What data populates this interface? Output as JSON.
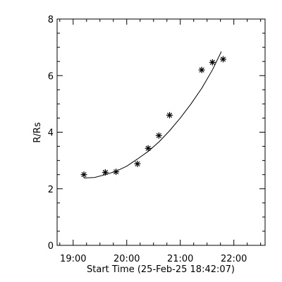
{
  "chart_data": {
    "type": "scatter",
    "title": "",
    "xlabel": "Start Time (25-Feb-25 18:42:07)",
    "ylabel": "R/Rs",
    "xlim": [
      "18:42",
      "22:35"
    ],
    "ylim": [
      0,
      8
    ],
    "grid": false,
    "x_ticks": [
      "19:00",
      "20:00",
      "21:00",
      "22:00"
    ],
    "y_ticks": [
      "0",
      "2",
      "4",
      "6",
      "8"
    ],
    "series": [
      {
        "marker": "asterisk",
        "points": [
          {
            "x": "19:12",
            "y": 2.5
          },
          {
            "x": "19:36",
            "y": 2.58
          },
          {
            "x": "19:48",
            "y": 2.6
          },
          {
            "x": "20:12",
            "y": 2.88
          },
          {
            "x": "20:24",
            "y": 3.43
          },
          {
            "x": "20:36",
            "y": 3.88
          },
          {
            "x": "20:48",
            "y": 4.6
          },
          {
            "x": "21:24",
            "y": 6.2
          },
          {
            "x": "21:36",
            "y": 6.47
          },
          {
            "x": "21:48",
            "y": 6.58
          }
        ]
      },
      {
        "style": "line",
        "x": [
          "19:12",
          "19:24",
          "19:36",
          "19:48",
          "20:00",
          "20:12",
          "20:24",
          "20:36",
          "20:48",
          "21:00",
          "21:12",
          "21:24",
          "21:36",
          "21:46"
        ],
        "y": [
          2.38,
          2.4,
          2.5,
          2.62,
          2.8,
          3.05,
          3.32,
          3.65,
          4.05,
          4.5,
          5.0,
          5.55,
          6.2,
          6.85
        ]
      }
    ]
  }
}
